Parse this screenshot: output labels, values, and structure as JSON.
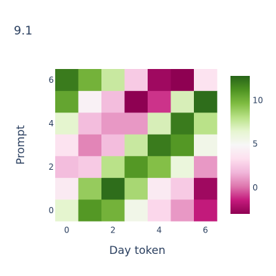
{
  "chart_data": {
    "type": "heatmap",
    "title": "9.1",
    "xlabel": "Day token",
    "ylabel": "Prompt",
    "x": [
      0,
      1,
      2,
      3,
      4,
      5,
      6
    ],
    "y": [
      0,
      1,
      2,
      3,
      4,
      5,
      6
    ],
    "x_ticks": [
      "0",
      "2",
      "4",
      "6"
    ],
    "y_ticks": [
      "0",
      "2",
      "4",
      "6"
    ],
    "z": [
      [
        6.5,
        11.0,
        10.0,
        5.5,
        3.0,
        1.0,
        -1.5
      ],
      [
        4.0,
        9.0,
        12.5,
        8.5,
        4.0,
        2.5,
        -2.5
      ],
      [
        2.0,
        2.5,
        8.0,
        11.0,
        9.5,
        6.0,
        1.0
      ],
      [
        3.5,
        0.5,
        2.0,
        7.5,
        12.0,
        11.0,
        5.5
      ],
      [
        6.5,
        2.0,
        1.0,
        1.0,
        7.0,
        12.0,
        8.0
      ],
      [
        10.5,
        4.5,
        2.0,
        -3.0,
        -1.0,
        7.0,
        12.5
      ],
      [
        12.0,
        10.0,
        7.5,
        2.5,
        -2.5,
        -3.0,
        3.5
      ]
    ],
    "zmin": -3.0,
    "zmax": 12.8,
    "colorscale": "PiYG",
    "colorbar_ticks": [
      0,
      5,
      10
    ],
    "grid": false,
    "legend": "colorbar-right"
  }
}
